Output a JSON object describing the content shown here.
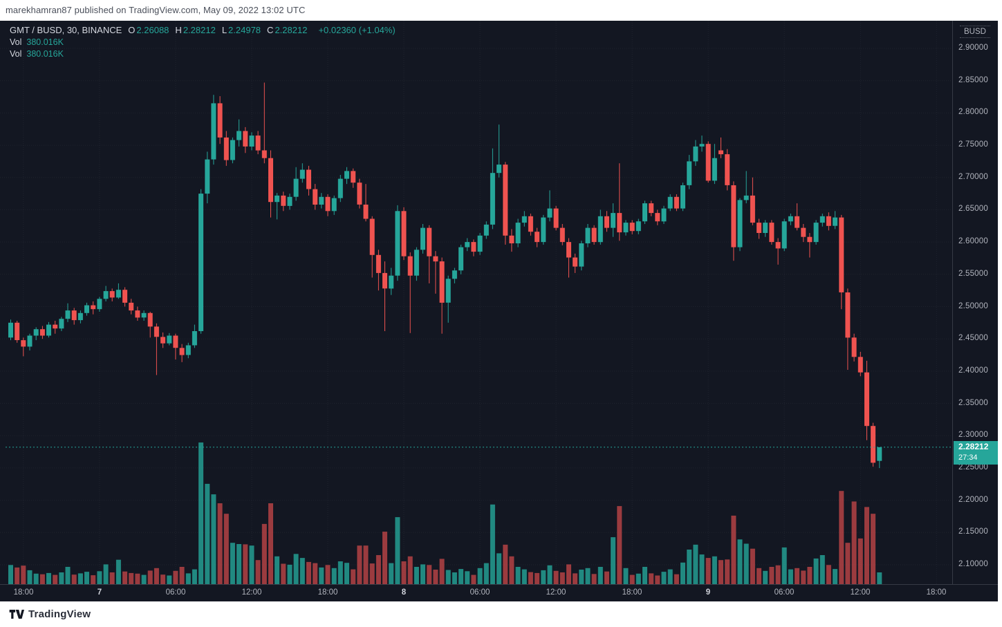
{
  "attribution": "marekhamran87 published on TradingView.com, May 09, 2022 13:02 UTC",
  "header": {
    "symbol_title": "GMT / BUSD, 30, BINANCE",
    "ohlc": [
      {
        "k": "O",
        "v": "2.26088"
      },
      {
        "k": "H",
        "v": "2.28212"
      },
      {
        "k": "L",
        "v": "2.24978"
      },
      {
        "k": "C",
        "v": "2.28212"
      }
    ],
    "change": "+0.02360 (+1.04%)",
    "indicators": [
      {
        "label": "Vol",
        "value": "380.016K"
      },
      {
        "label": "Vol",
        "value": "380.016K"
      }
    ]
  },
  "price_axis": {
    "currency": "BUSD",
    "ticks": [
      "2.90000",
      "2.85000",
      "2.80000",
      "2.75000",
      "2.70000",
      "2.65000",
      "2.60000",
      "2.55000",
      "2.50000",
      "2.45000",
      "2.40000",
      "2.35000",
      "2.30000",
      "2.25000",
      "2.20000",
      "2.15000",
      "2.10000"
    ],
    "last_price_label": {
      "price": "2.28212",
      "countdown": "27:34"
    }
  },
  "time_axis": {
    "labels": [
      {
        "text": "18:00",
        "bar": 2,
        "major": false
      },
      {
        "text": "7",
        "bar": 14,
        "major": true
      },
      {
        "text": "06:00",
        "bar": 26,
        "major": false
      },
      {
        "text": "12:00",
        "bar": 38,
        "major": false
      },
      {
        "text": "18:00",
        "bar": 50,
        "major": false
      },
      {
        "text": "8",
        "bar": 62,
        "major": true
      },
      {
        "text": "06:00",
        "bar": 74,
        "major": false
      },
      {
        "text": "12:00",
        "bar": 86,
        "major": false
      },
      {
        "text": "18:00",
        "bar": 98,
        "major": false
      },
      {
        "text": "9",
        "bar": 110,
        "major": true
      },
      {
        "text": "06:00",
        "bar": 122,
        "major": false
      },
      {
        "text": "12:00",
        "bar": 134,
        "major": false
      },
      {
        "text": "18:00",
        "bar": 146,
        "major": false
      }
    ]
  },
  "footer": {
    "brand": "TradingView"
  },
  "colors": {
    "background": "#131722",
    "up": "#26a69a",
    "down": "#ef5350",
    "vol_up": "rgba(38,166,154,0.8)",
    "vol_down": "rgba(239,83,80,0.62)",
    "axis_text": "#b2b5be",
    "grid": "rgba(178,181,190,0.08)",
    "price_line": "#26a69a",
    "label_bg": "#26a69a"
  },
  "chart_data": {
    "type": "candlestick",
    "symbol": "GMT/BUSD",
    "exchange": "BINANCE",
    "interval_minutes": 30,
    "first_bar_time": "2022-05-06 17:00 UTC",
    "last_bar_time": "2022-05-09 13:00 UTC",
    "price_range_visible": [
      2.1,
      2.9
    ],
    "grid": true,
    "current_price": 2.28212,
    "current_bar_volume": "380.016K",
    "volume_unit": "K",
    "candles_format": [
      "open",
      "high",
      "low",
      "close",
      "volume_thousands"
    ],
    "candles": [
      [
        2.452,
        2.48,
        2.448,
        2.475,
        620
      ],
      [
        2.475,
        2.478,
        2.444,
        2.448,
        540
      ],
      [
        2.448,
        2.452,
        2.423,
        2.438,
        600
      ],
      [
        2.438,
        2.458,
        2.432,
        2.455,
        450
      ],
      [
        2.455,
        2.468,
        2.448,
        2.465,
        340
      ],
      [
        2.465,
        2.47,
        2.45,
        2.455,
        320
      ],
      [
        2.455,
        2.476,
        2.452,
        2.472,
        360
      ],
      [
        2.472,
        2.478,
        2.458,
        2.466,
        300
      ],
      [
        2.466,
        2.484,
        2.462,
        2.481,
        380
      ],
      [
        2.481,
        2.505,
        2.476,
        2.494,
        560
      ],
      [
        2.494,
        2.498,
        2.472,
        2.479,
        310
      ],
      [
        2.479,
        2.494,
        2.474,
        2.49,
        350
      ],
      [
        2.49,
        2.506,
        2.486,
        2.502,
        400
      ],
      [
        2.502,
        2.508,
        2.488,
        2.496,
        290
      ],
      [
        2.496,
        2.515,
        2.492,
        2.512,
        420
      ],
      [
        2.512,
        2.532,
        2.508,
        2.524,
        640
      ],
      [
        2.524,
        2.528,
        2.508,
        2.514,
        380
      ],
      [
        2.514,
        2.536,
        2.512,
        2.526,
        790
      ],
      [
        2.526,
        2.53,
        2.5,
        2.506,
        410
      ],
      [
        2.506,
        2.512,
        2.488,
        2.494,
        360
      ],
      [
        2.494,
        2.5,
        2.478,
        2.483,
        340
      ],
      [
        2.483,
        2.494,
        2.478,
        2.49,
        300
      ],
      [
        2.49,
        2.492,
        2.452,
        2.469,
        440
      ],
      [
        2.469,
        2.474,
        2.394,
        2.453,
        520
      ],
      [
        2.453,
        2.46,
        2.436,
        2.443,
        310
      ],
      [
        2.443,
        2.459,
        2.44,
        2.455,
        280
      ],
      [
        2.455,
        2.458,
        2.418,
        2.436,
        430
      ],
      [
        2.436,
        2.442,
        2.414,
        2.425,
        560
      ],
      [
        2.425,
        2.444,
        2.42,
        2.44,
        350
      ],
      [
        2.44,
        2.472,
        2.436,
        2.462,
        480
      ],
      [
        2.462,
        2.682,
        2.458,
        2.675,
        4590
      ],
      [
        2.675,
        2.74,
        2.66,
        2.728,
        3250
      ],
      [
        2.728,
        2.828,
        2.72,
        2.815,
        2910
      ],
      [
        2.815,
        2.826,
        2.752,
        2.762,
        2620
      ],
      [
        2.762,
        2.772,
        2.718,
        2.727,
        2280
      ],
      [
        2.727,
        2.762,
        2.722,
        2.758,
        1340
      ],
      [
        2.758,
        2.79,
        2.748,
        2.772,
        1300
      ],
      [
        2.772,
        2.778,
        2.738,
        2.748,
        1290
      ],
      [
        2.748,
        2.77,
        2.742,
        2.765,
        1250
      ],
      [
        2.765,
        2.772,
        2.736,
        2.742,
        780
      ],
      [
        2.742,
        2.847,
        2.722,
        2.73,
        1950
      ],
      [
        2.73,
        2.742,
        2.638,
        2.662,
        2620
      ],
      [
        2.662,
        2.676,
        2.635,
        2.672,
        900
      ],
      [
        2.672,
        2.678,
        2.648,
        2.656,
        660
      ],
      [
        2.656,
        2.675,
        2.65,
        2.67,
        630
      ],
      [
        2.67,
        2.716,
        2.664,
        2.698,
        980
      ],
      [
        2.698,
        2.722,
        2.692,
        2.712,
        850
      ],
      [
        2.712,
        2.718,
        2.672,
        2.682,
        720
      ],
      [
        2.682,
        2.69,
        2.65,
        2.658,
        680
      ],
      [
        2.658,
        2.676,
        2.652,
        2.67,
        540
      ],
      [
        2.67,
        2.674,
        2.64,
        2.648,
        620
      ],
      [
        2.648,
        2.672,
        2.642,
        2.668,
        520
      ],
      [
        2.668,
        2.704,
        2.662,
        2.698,
        740
      ],
      [
        2.698,
        2.716,
        2.69,
        2.71,
        690
      ],
      [
        2.71,
        2.714,
        2.684,
        2.692,
        480
      ],
      [
        2.692,
        2.698,
        2.652,
        2.658,
        1250
      ],
      [
        2.658,
        2.69,
        2.632,
        2.636,
        1250
      ],
      [
        2.636,
        2.64,
        2.545,
        2.58,
        670
      ],
      [
        2.58,
        2.588,
        2.525,
        2.552,
        940
      ],
      [
        2.552,
        2.57,
        2.462,
        2.528,
        1700
      ],
      [
        2.528,
        2.56,
        2.518,
        2.548,
        680
      ],
      [
        2.548,
        2.657,
        2.54,
        2.648,
        2170
      ],
      [
        2.648,
        2.654,
        2.572,
        2.578,
        740
      ],
      [
        2.578,
        2.584,
        2.459,
        2.548,
        900
      ],
      [
        2.548,
        2.592,
        2.54,
        2.588,
        560
      ],
      [
        2.588,
        2.628,
        2.582,
        2.622,
        640
      ],
      [
        2.622,
        2.626,
        2.536,
        2.578,
        620
      ],
      [
        2.578,
        2.586,
        2.52,
        2.57,
        470
      ],
      [
        2.57,
        2.576,
        2.458,
        2.506,
        820
      ],
      [
        2.506,
        2.548,
        2.475,
        2.543,
        460
      ],
      [
        2.543,
        2.56,
        2.536,
        2.556,
        380
      ],
      [
        2.556,
        2.596,
        2.55,
        2.592,
        490
      ],
      [
        2.592,
        2.606,
        2.586,
        2.6,
        420
      ],
      [
        2.6,
        2.604,
        2.578,
        2.585,
        300
      ],
      [
        2.585,
        2.614,
        2.58,
        2.61,
        520
      ],
      [
        2.61,
        2.632,
        2.605,
        2.627,
        680
      ],
      [
        2.627,
        2.745,
        2.62,
        2.707,
        2580
      ],
      [
        2.707,
        2.782,
        2.7,
        2.72,
        1000
      ],
      [
        2.72,
        2.724,
        2.596,
        2.61,
        1280
      ],
      [
        2.61,
        2.62,
        2.585,
        2.598,
        900
      ],
      [
        2.598,
        2.636,
        2.592,
        2.63,
        560
      ],
      [
        2.63,
        2.648,
        2.624,
        2.64,
        480
      ],
      [
        2.64,
        2.644,
        2.61,
        2.616,
        390
      ],
      [
        2.616,
        2.622,
        2.592,
        2.6,
        360
      ],
      [
        2.6,
        2.642,
        2.596,
        2.638,
        450
      ],
      [
        2.638,
        2.68,
        2.632,
        2.652,
        610
      ],
      [
        2.652,
        2.656,
        2.618,
        2.622,
        430
      ],
      [
        2.622,
        2.628,
        2.595,
        2.6,
        380
      ],
      [
        2.6,
        2.606,
        2.545,
        2.576,
        640
      ],
      [
        2.576,
        2.582,
        2.552,
        2.562,
        350
      ],
      [
        2.562,
        2.602,
        2.556,
        2.598,
        470
      ],
      [
        2.598,
        2.628,
        2.592,
        2.622,
        520
      ],
      [
        2.622,
        2.626,
        2.596,
        2.6,
        330
      ],
      [
        2.6,
        2.65,
        2.596,
        2.64,
        560
      ],
      [
        2.64,
        2.648,
        2.616,
        2.622,
        410
      ],
      [
        2.622,
        2.66,
        2.608,
        2.645,
        1520
      ],
      [
        2.645,
        2.722,
        2.602,
        2.615,
        2530
      ],
      [
        2.615,
        2.634,
        2.61,
        2.63,
        520
      ],
      [
        2.63,
        2.634,
        2.612,
        2.617,
        300
      ],
      [
        2.617,
        2.636,
        2.612,
        2.632,
        340
      ],
      [
        2.632,
        2.664,
        2.628,
        2.66,
        560
      ],
      [
        2.66,
        2.664,
        2.64,
        2.645,
        350
      ],
      [
        2.645,
        2.65,
        2.626,
        2.632,
        280
      ],
      [
        2.632,
        2.656,
        2.628,
        2.652,
        400
      ],
      [
        2.652,
        2.674,
        2.648,
        2.67,
        480
      ],
      [
        2.67,
        2.674,
        2.648,
        2.652,
        320
      ],
      [
        2.652,
        2.692,
        2.648,
        2.688,
        700
      ],
      [
        2.688,
        2.735,
        2.682,
        2.725,
        1120
      ],
      [
        2.725,
        2.758,
        2.718,
        2.748,
        1280
      ],
      [
        2.748,
        2.765,
        2.74,
        2.752,
        960
      ],
      [
        2.752,
        2.756,
        2.692,
        2.695,
        850
      ],
      [
        2.695,
        2.752,
        2.69,
        2.73,
        900
      ],
      [
        2.742,
        2.762,
        2.73,
        2.736,
        780
      ],
      [
        2.736,
        2.744,
        2.68,
        2.688,
        800
      ],
      [
        2.688,
        2.694,
        2.571,
        2.592,
        2220
      ],
      [
        2.592,
        2.668,
        2.586,
        2.665,
        1450
      ],
      [
        2.665,
        2.71,
        2.66,
        2.672,
        1310
      ],
      [
        2.672,
        2.7,
        2.626,
        2.63,
        1150
      ],
      [
        2.63,
        2.636,
        2.605,
        2.614,
        520
      ],
      [
        2.614,
        2.634,
        2.608,
        2.63,
        430
      ],
      [
        2.63,
        2.634,
        2.596,
        2.6,
        560
      ],
      [
        2.6,
        2.606,
        2.565,
        2.59,
        610
      ],
      [
        2.59,
        2.636,
        2.586,
        2.632,
        1190
      ],
      [
        2.632,
        2.644,
        2.626,
        2.64,
        480
      ],
      [
        2.64,
        2.66,
        2.618,
        2.622,
        520
      ],
      [
        2.622,
        2.628,
        2.6,
        2.608,
        440
      ],
      [
        2.608,
        2.614,
        2.576,
        2.6,
        560
      ],
      [
        2.6,
        2.634,
        2.596,
        2.63,
        830
      ],
      [
        2.63,
        2.644,
        2.624,
        2.64,
        940
      ],
      [
        2.64,
        2.646,
        2.618,
        2.625,
        620
      ],
      [
        2.625,
        2.648,
        2.62,
        2.638,
        490
      ],
      [
        2.638,
        2.642,
        2.496,
        2.522,
        3020
      ],
      [
        2.522,
        2.528,
        2.402,
        2.452,
        1340
      ],
      [
        2.452,
        2.458,
        2.415,
        2.422,
        2680
      ],
      [
        2.422,
        2.43,
        2.392,
        2.398,
        1480
      ],
      [
        2.398,
        2.416,
        2.293,
        2.315,
        2500
      ],
      [
        2.315,
        2.32,
        2.252,
        2.258,
        2280
      ],
      [
        2.26088,
        2.28212,
        2.24978,
        2.28212,
        380
      ]
    ]
  }
}
